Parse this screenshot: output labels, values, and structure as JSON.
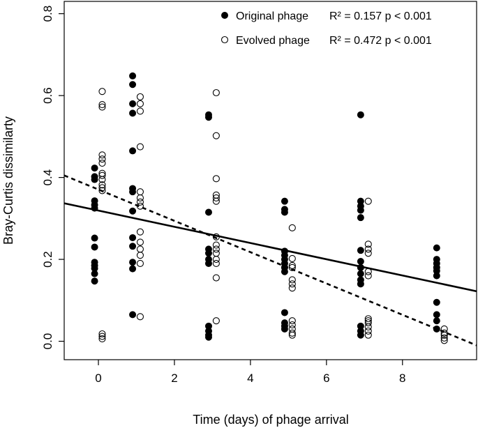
{
  "chart_data": {
    "type": "scatter",
    "title": "",
    "xlabel": "Time (days) of phage arrival",
    "ylabel": "Bray-Curtis dissimilarty",
    "xlim": [
      -0.9,
      9.95
    ],
    "ylim": [
      -0.045,
      0.83
    ],
    "xticks": [
      0,
      2,
      4,
      6,
      8
    ],
    "yticks": [
      0.0,
      0.2,
      0.4,
      0.6,
      0.8
    ],
    "xtick_labels": [
      "0",
      "2",
      "4",
      "6",
      "8"
    ],
    "ytick_labels": [
      "0.0",
      "0.2",
      "0.4",
      "0.6",
      "0.8"
    ],
    "grid": false,
    "legend_position": "top-right",
    "series": [
      {
        "name": "Original phage",
        "marker": "filled-circle",
        "stats_label": "R² = 0.157   p < 0.001",
        "points": [
          [
            -0.1,
            0.423
          ],
          [
            -0.1,
            0.402
          ],
          [
            -0.1,
            0.395
          ],
          [
            -0.1,
            0.343
          ],
          [
            -0.1,
            0.333
          ],
          [
            -0.1,
            0.325
          ],
          [
            -0.1,
            0.252
          ],
          [
            -0.1,
            0.23
          ],
          [
            -0.1,
            0.193
          ],
          [
            -0.1,
            0.185
          ],
          [
            -0.1,
            0.178
          ],
          [
            -0.1,
            0.165
          ],
          [
            -0.1,
            0.147
          ],
          [
            0.9,
            0.648
          ],
          [
            0.9,
            0.627
          ],
          [
            0.9,
            0.58
          ],
          [
            0.9,
            0.557
          ],
          [
            0.9,
            0.465
          ],
          [
            0.9,
            0.373
          ],
          [
            0.9,
            0.365
          ],
          [
            0.9,
            0.318
          ],
          [
            0.9,
            0.253
          ],
          [
            0.9,
            0.232
          ],
          [
            0.9,
            0.193
          ],
          [
            0.9,
            0.177
          ],
          [
            0.9,
            0.065
          ],
          [
            2.9,
            0.553
          ],
          [
            2.9,
            0.547
          ],
          [
            2.9,
            0.315
          ],
          [
            2.9,
            0.225
          ],
          [
            2.9,
            0.215
          ],
          [
            2.9,
            0.2
          ],
          [
            2.9,
            0.19
          ],
          [
            2.9,
            0.037
          ],
          [
            2.9,
            0.025
          ],
          [
            2.9,
            0.015
          ],
          [
            2.9,
            0.01
          ],
          [
            4.9,
            0.342
          ],
          [
            4.9,
            0.322
          ],
          [
            4.9,
            0.315
          ],
          [
            4.9,
            0.22
          ],
          [
            4.9,
            0.21
          ],
          [
            4.9,
            0.2
          ],
          [
            4.9,
            0.19
          ],
          [
            4.9,
            0.18
          ],
          [
            4.9,
            0.17
          ],
          [
            4.9,
            0.07
          ],
          [
            4.9,
            0.045
          ],
          [
            4.9,
            0.037
          ],
          [
            4.9,
            0.03
          ],
          [
            6.9,
            0.553
          ],
          [
            6.9,
            0.342
          ],
          [
            6.9,
            0.33
          ],
          [
            6.9,
            0.32
          ],
          [
            6.9,
            0.302
          ],
          [
            6.9,
            0.222
          ],
          [
            6.9,
            0.195
          ],
          [
            6.9,
            0.18
          ],
          [
            6.9,
            0.165
          ],
          [
            6.9,
            0.15
          ],
          [
            6.9,
            0.14
          ],
          [
            6.9,
            0.037
          ],
          [
            6.9,
            0.025
          ],
          [
            6.9,
            0.015
          ],
          [
            8.9,
            0.228
          ],
          [
            8.9,
            0.2
          ],
          [
            8.9,
            0.19
          ],
          [
            8.9,
            0.18
          ],
          [
            8.9,
            0.172
          ],
          [
            8.9,
            0.16
          ],
          [
            8.9,
            0.095
          ],
          [
            8.9,
            0.065
          ],
          [
            8.9,
            0.05
          ],
          [
            8.9,
            0.03
          ]
        ],
        "fit_line": {
          "style": "solid",
          "x": [
            -0.9,
            9.95
          ],
          "y": [
            0.337,
            0.122
          ]
        }
      },
      {
        "name": "Evolved phage",
        "marker": "open-circle",
        "stats_label": "R² = 0.472   p < 0.001",
        "points": [
          [
            0.1,
            0.61
          ],
          [
            0.1,
            0.578
          ],
          [
            0.1,
            0.572
          ],
          [
            0.1,
            0.455
          ],
          [
            0.1,
            0.445
          ],
          [
            0.1,
            0.435
          ],
          [
            0.1,
            0.41
          ],
          [
            0.1,
            0.405
          ],
          [
            0.1,
            0.395
          ],
          [
            0.1,
            0.382
          ],
          [
            0.1,
            0.375
          ],
          [
            0.1,
            0.368
          ],
          [
            0.1,
            0.018
          ],
          [
            0.1,
            0.012
          ],
          [
            0.1,
            0.006
          ],
          [
            1.1,
            0.597
          ],
          [
            1.1,
            0.58
          ],
          [
            1.1,
            0.562
          ],
          [
            1.1,
            0.475
          ],
          [
            1.1,
            0.365
          ],
          [
            1.1,
            0.35
          ],
          [
            1.1,
            0.34
          ],
          [
            1.1,
            0.33
          ],
          [
            1.1,
            0.267
          ],
          [
            1.1,
            0.242
          ],
          [
            1.1,
            0.225
          ],
          [
            1.1,
            0.21
          ],
          [
            1.1,
            0.19
          ],
          [
            1.1,
            0.06
          ],
          [
            3.1,
            0.607
          ],
          [
            3.1,
            0.502
          ],
          [
            3.1,
            0.397
          ],
          [
            3.1,
            0.357
          ],
          [
            3.1,
            0.35
          ],
          [
            3.1,
            0.342
          ],
          [
            3.1,
            0.255
          ],
          [
            3.1,
            0.235
          ],
          [
            3.1,
            0.225
          ],
          [
            3.1,
            0.215
          ],
          [
            3.1,
            0.2
          ],
          [
            3.1,
            0.19
          ],
          [
            3.1,
            0.155
          ],
          [
            3.1,
            0.05
          ],
          [
            5.1,
            0.277
          ],
          [
            5.1,
            0.202
          ],
          [
            5.1,
            0.185
          ],
          [
            5.1,
            0.18
          ],
          [
            5.1,
            0.15
          ],
          [
            5.1,
            0.14
          ],
          [
            5.1,
            0.13
          ],
          [
            5.1,
            0.05
          ],
          [
            5.1,
            0.04
          ],
          [
            5.1,
            0.03
          ],
          [
            5.1,
            0.02
          ],
          [
            5.1,
            0.015
          ],
          [
            7.1,
            0.342
          ],
          [
            7.1,
            0.237
          ],
          [
            7.1,
            0.225
          ],
          [
            7.1,
            0.215
          ],
          [
            7.1,
            0.17
          ],
          [
            7.1,
            0.16
          ],
          [
            7.1,
            0.055
          ],
          [
            7.1,
            0.05
          ],
          [
            7.1,
            0.045
          ],
          [
            7.1,
            0.035
          ],
          [
            7.1,
            0.025
          ],
          [
            7.1,
            0.015
          ],
          [
            9.1,
            0.03
          ],
          [
            9.1,
            0.02
          ],
          [
            9.1,
            0.015
          ],
          [
            9.1,
            0.008
          ],
          [
            9.1,
            0.002
          ]
        ],
        "fit_line": {
          "style": "dashed",
          "x": [
            -0.9,
            9.95
          ],
          "y": [
            0.405,
            -0.01
          ]
        }
      }
    ]
  }
}
